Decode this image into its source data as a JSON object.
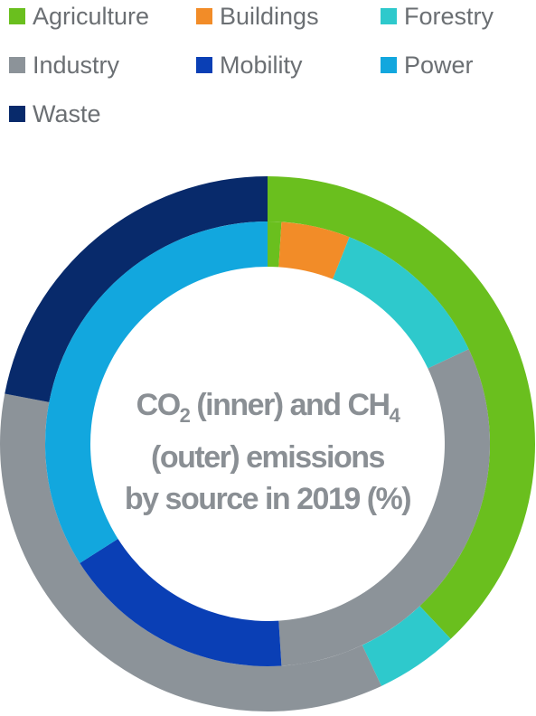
{
  "chart_data": {
    "type": "donut",
    "title_parts": [
      "CO",
      "2",
      " (inner) and CH",
      "4",
      "(outer) emissions",
      "by source in 2019 (%)"
    ],
    "legend": [
      {
        "name": "Agriculture",
        "color": "#6abf1e"
      },
      {
        "name": "Buildings",
        "color": "#f28c28"
      },
      {
        "name": "Forestry",
        "color": "#2ec9cc"
      },
      {
        "name": "Industry",
        "color": "#8c9399"
      },
      {
        "name": "Mobility",
        "color": "#0a3fb5"
      },
      {
        "name": "Power",
        "color": "#12a7de"
      },
      {
        "name": "Waste",
        "color": "#082a6b"
      }
    ],
    "series": [
      {
        "name": "CO2 (inner)",
        "categories": [
          "Agriculture",
          "Buildings",
          "Forestry",
          "Industry",
          "Mobility",
          "Power"
        ],
        "values": [
          1,
          5,
          12,
          31,
          17,
          34
        ]
      },
      {
        "name": "CH4 (outer)",
        "categories": [
          "Agriculture",
          "Forestry",
          "Industry",
          "Waste"
        ],
        "values": [
          38,
          5,
          35,
          22
        ]
      }
    ]
  }
}
